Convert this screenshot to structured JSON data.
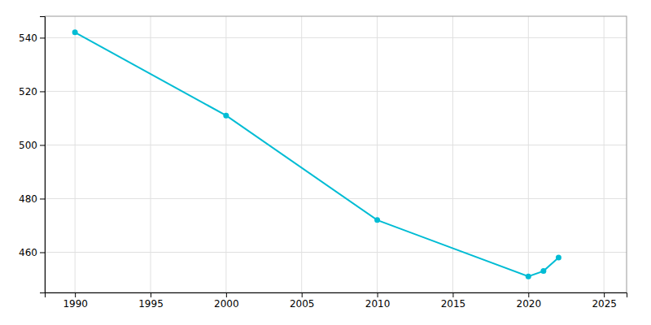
{
  "chart_data": {
    "type": "line",
    "x": [
      1990,
      2000,
      2010,
      2020,
      2021,
      2022
    ],
    "values": [
      542,
      511,
      472,
      451,
      453,
      458
    ],
    "color": "#00bcd4",
    "marker": "circle",
    "xlim": [
      1988,
      2026.5
    ],
    "ylim": [
      445,
      548
    ],
    "xticks": [
      1990,
      1995,
      2000,
      2005,
      2010,
      2015,
      2020,
      2025
    ],
    "yticks": [
      460,
      480,
      500,
      520,
      540
    ],
    "grid": true
  }
}
